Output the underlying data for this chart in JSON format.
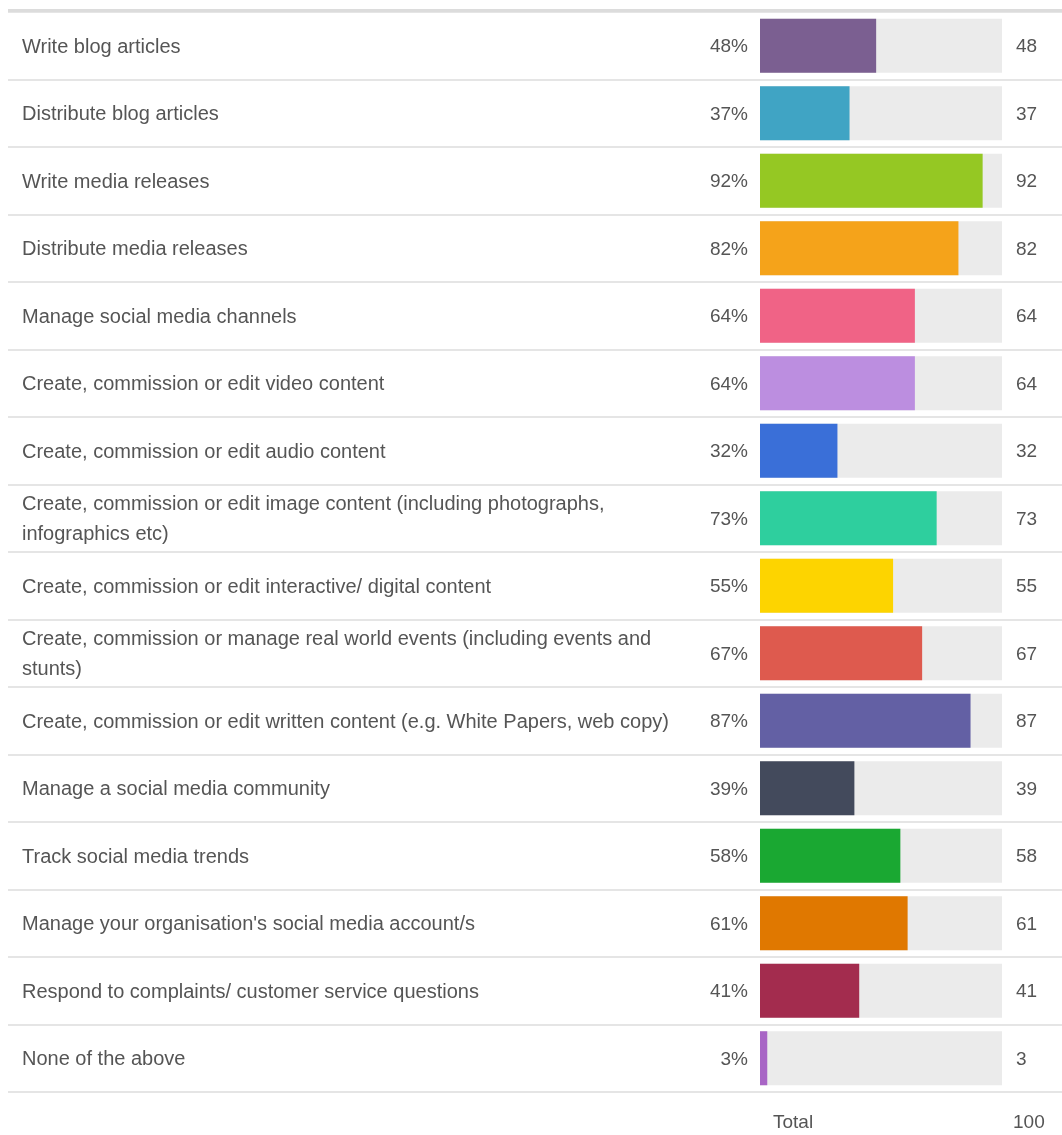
{
  "chart_data": {
    "type": "bar",
    "orientation": "horizontal",
    "categories": [
      "Write blog articles",
      "Distribute blog articles",
      "Write media releases",
      "Distribute media releases",
      "Manage social media channels",
      "Create, commission or edit video content",
      "Create, commission or edit audio content",
      "Create, commission or edit image content (including photographs, infographics etc)",
      "Create, commission or edit interactive/ digital content",
      "Create, commission or manage real world events (including events and stunts)",
      "Create, commission or edit written content (e.g. White Papers, web copy)",
      "Manage a social media community",
      "Track social media trends",
      "Manage your organisation's social media account/s",
      "Respond to complaints/ customer service questions",
      "None of the above"
    ],
    "values": [
      48,
      37,
      92,
      82,
      64,
      64,
      32,
      73,
      55,
      67,
      87,
      39,
      58,
      61,
      41,
      3
    ],
    "value_labels": [
      "48%",
      "37%",
      "92%",
      "82%",
      "64%",
      "64%",
      "32%",
      "73%",
      "55%",
      "67%",
      "87%",
      "39%",
      "58%",
      "61%",
      "41%",
      "3%"
    ],
    "colors": [
      "#7b5f91",
      "#40a4c4",
      "#95c823",
      "#f5a31a",
      "#f06386",
      "#bc8ee0",
      "#3a6fd8",
      "#2ecf9e",
      "#fdd400",
      "#de5a4e",
      "#6360a4",
      "#434a5c",
      "#1aa832",
      "#e07800",
      "#a32c4e",
      "#a865c5"
    ],
    "xlim": [
      0,
      100
    ],
    "grid": "y",
    "tick_labels": "y",
    "annotations": [
      "48",
      "37",
      "92",
      "82",
      "64",
      "64",
      "32",
      "73",
      "55",
      "67",
      "87",
      "39",
      "58",
      "61",
      "41",
      "3",
      "Total",
      "100"
    ]
  }
}
